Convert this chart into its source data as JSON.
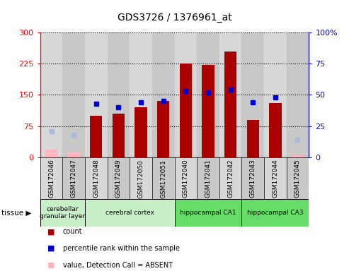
{
  "title": "GDS3726 / 1376961_at",
  "samples": [
    "GSM172046",
    "GSM172047",
    "GSM172048",
    "GSM172049",
    "GSM172050",
    "GSM172051",
    "GSM172040",
    "GSM172041",
    "GSM172042",
    "GSM172043",
    "GSM172044",
    "GSM172045"
  ],
  "count_values": [
    null,
    null,
    100,
    105,
    120,
    135,
    225,
    222,
    255,
    90,
    130,
    null
  ],
  "count_absent": [
    18,
    12,
    null,
    null,
    null,
    null,
    null,
    null,
    null,
    null,
    null,
    5
  ],
  "rank_values": [
    null,
    null,
    43,
    40,
    44,
    45,
    53,
    52,
    54,
    44,
    48,
    null
  ],
  "rank_absent": [
    21,
    18,
    null,
    null,
    null,
    null,
    null,
    null,
    null,
    null,
    null,
    14
  ],
  "tissue_groups": [
    {
      "label": "cerebellar\ngranular layer",
      "start": 0,
      "end": 1,
      "color": "#c8eec8"
    },
    {
      "label": "cerebral cortex",
      "start": 2,
      "end": 5,
      "color": "#c8eec8"
    },
    {
      "label": "hippocampal CA1",
      "start": 6,
      "end": 8,
      "color": "#66DD66"
    },
    {
      "label": "hippocampal CA3",
      "start": 9,
      "end": 11,
      "color": "#66DD66"
    }
  ],
  "ylim_left": [
    0,
    300
  ],
  "ylim_right": [
    0,
    100
  ],
  "yticks_left": [
    0,
    75,
    150,
    225,
    300
  ],
  "yticks_right": [
    0,
    25,
    50,
    75,
    100
  ],
  "bar_color_count": "#AA0000",
  "bar_color_count_absent": "#FFB6C1",
  "marker_color_rank": "#0000CC",
  "marker_color_rank_absent": "#AABBDD",
  "bar_width": 0.55,
  "marker_size": 5
}
